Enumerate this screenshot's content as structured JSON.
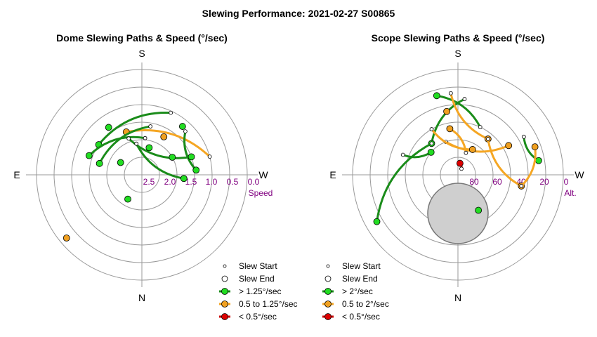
{
  "page": {
    "title": "Slewing Performance: 2021-02-27 S00865"
  },
  "colors": {
    "fast": "#1a8c1a",
    "fast_fill": "#22dd22",
    "medium": "#f5a623",
    "medium_fill": "#f0a020",
    "slow": "#cc0000",
    "slow_fill": "#dd0000",
    "grid": "#999999",
    "tick_text": "#800080"
  },
  "chart_data": [
    {
      "type": "scatter",
      "title": "Dome Slewing Paths & Speed (°/sec)",
      "projection": "polar",
      "directions": {
        "top": "S",
        "bottom": "N",
        "left": "E",
        "right": "W"
      },
      "radial_label": "Speed",
      "radial_ticks": [
        "2.5",
        "2.0",
        "1.5",
        "1.0",
        "0.5",
        "0.0"
      ],
      "legend": [
        {
          "label": "Slew Start",
          "marker": "small-circle"
        },
        {
          "label": "Slew End",
          "marker": "large-circle"
        },
        {
          "label": "> 1.25°/sec",
          "color_key": "fast"
        },
        {
          "label": "0.5 to 1.25°/sec",
          "color_key": "medium"
        },
        {
          "label": "< 0.5°/sec",
          "color_key": "slow"
        }
      ],
      "paths": [
        {
          "speed": "medium",
          "start": [
            75,
            1.0
          ],
          "end": [
            -20,
            1.7
          ]
        },
        {
          "speed": "medium",
          "start": [
            30,
            1.75
          ],
          "end": [
            30,
            1.75
          ]
        },
        {
          "speed": "medium",
          "start": [
            -130,
            0.2
          ],
          "end": [
            -130,
            0.2
          ]
        },
        {
          "speed": "fast",
          "start": [
            25,
            1.05
          ],
          "end": [
            -55,
            1.5
          ]
        },
        {
          "speed": "fast",
          "start": [
            5,
            1.95
          ],
          "end": [
            -70,
            1.4
          ]
        },
        {
          "speed": "fast",
          "start": [
            45,
            1.25
          ],
          "end": [
            85,
            1.45
          ]
        },
        {
          "speed": "fast",
          "start": [
            10,
            1.6
          ],
          "end": [
            -75,
            1.75
          ]
        },
        {
          "speed": "fast",
          "start": [
            -20,
            1.9
          ],
          "end": [
            70,
            1.5
          ]
        },
        {
          "speed": "fast",
          "start": [
            -10,
            2.1
          ],
          "end": [
            95,
            1.8
          ]
        },
        {
          "speed": "fast",
          "start": [
            40,
            1.2
          ],
          "end": [
            40,
            1.2
          ]
        },
        {
          "speed": "fast",
          "start": [
            -35,
            1.35
          ],
          "end": [
            -35,
            1.35
          ]
        },
        {
          "speed": "fast",
          "start": [
            60,
            2.0
          ],
          "end": [
            60,
            2.0
          ]
        },
        {
          "speed": "fast",
          "start": [
            -150,
            2.2
          ],
          "end": [
            -150,
            2.2
          ]
        },
        {
          "speed": "fast",
          "start": [
            -60,
            2.3
          ],
          "end": [
            -60,
            2.3
          ]
        },
        {
          "speed": "fast",
          "start": [
            15,
            2.2
          ],
          "end": [
            15,
            2.2
          ]
        }
      ]
    },
    {
      "type": "scatter",
      "title": "Scope Slewing Paths & Speed (°/sec)",
      "projection": "polar",
      "directions": {
        "top": "S",
        "bottom": "N",
        "left": "E",
        "right": "W"
      },
      "radial_label": "Alt.",
      "radial_ticks": [
        "80",
        "60",
        "40",
        "20",
        "0"
      ],
      "legend": [
        {
          "label": "Slew Start",
          "marker": "small-circle"
        },
        {
          "label": "Slew End",
          "marker": "large-circle"
        },
        {
          "label": "> 2°/sec",
          "color_key": "fast"
        },
        {
          "label": "0.5 to 2°/sec",
          "color_key": "medium"
        },
        {
          "label": "< 0.5°/sec",
          "color_key": "slow"
        }
      ],
      "paths": [
        {
          "speed": "fast",
          "start": [
            5,
            25
          ],
          "end": [
            -40,
            55
          ]
        },
        {
          "speed": "fast",
          "start": [
            -40,
            55
          ],
          "end": [
            -120,
            10
          ]
        },
        {
          "speed": "fast",
          "start": [
            25,
            45
          ],
          "end": [
            -15,
            20
          ]
        },
        {
          "speed": "fast",
          "start": [
            60,
            25
          ],
          "end": [
            80,
            20
          ]
        },
        {
          "speed": "fast",
          "start": [
            -70,
            40
          ],
          "end": [
            -50,
            60
          ]
        },
        {
          "speed": "fast",
          "start": [
            150,
            55
          ],
          "end": [
            150,
            55
          ]
        },
        {
          "speed": "medium",
          "start": [
            -5,
            20
          ],
          "end": [
            40,
            50
          ]
        },
        {
          "speed": "medium",
          "start": [
            40,
            50
          ],
          "end": [
            100,
            35
          ]
        },
        {
          "speed": "medium",
          "start": [
            100,
            35
          ],
          "end": [
            70,
            20
          ]
        },
        {
          "speed": "medium",
          "start": [
            -20,
            60
          ],
          "end": [
            60,
            40
          ]
        },
        {
          "speed": "medium",
          "start": [
            20,
            70
          ],
          "end": [
            -10,
            50
          ]
        },
        {
          "speed": "medium",
          "start": [
            -30,
            45
          ],
          "end": [
            30,
            65
          ]
        },
        {
          "speed": "medium",
          "start": [
            -10,
            35
          ],
          "end": [
            -10,
            35
          ]
        },
        {
          "speed": "slow",
          "start": [
            30,
            84
          ],
          "end": [
            10,
            80
          ]
        }
      ]
    }
  ],
  "legend_layout": {}
}
